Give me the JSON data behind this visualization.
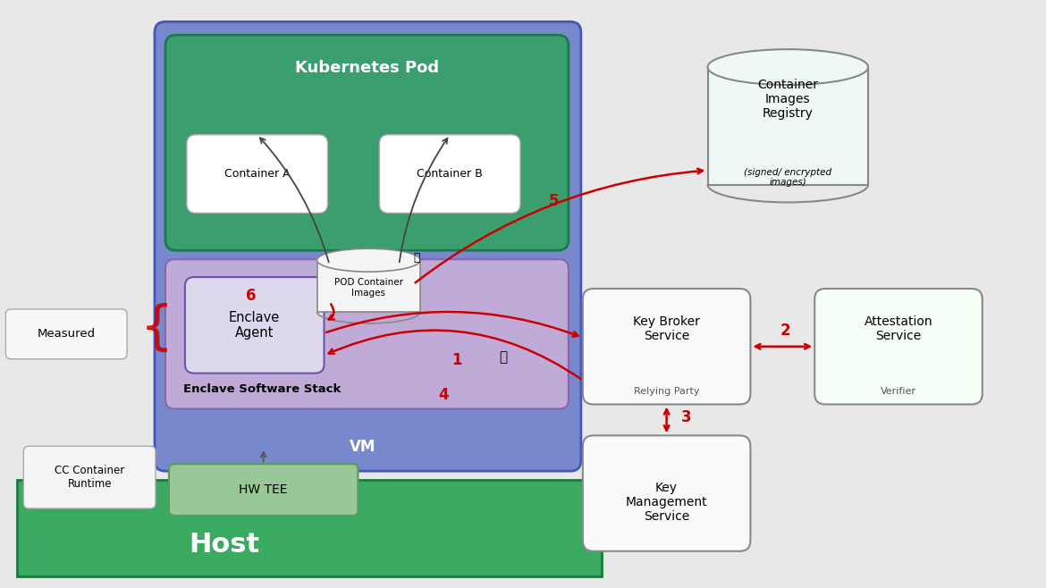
{
  "bg_color": "#e8e8e8",
  "colors": {
    "blue_vm": "#7788cc",
    "green_pod": "#3a9e6e",
    "purple_enclave": "#c0aad8",
    "green_host": "#3aaa60",
    "green_hwtee": "#98c898",
    "red": "#cc0000",
    "dark": "#444444"
  },
  "labels": {
    "kubernetes_pod": "Kubernetes Pod",
    "container_a": "Container A",
    "container_b": "Container B",
    "pod_container_images": "POD Container\nImages",
    "enclave_agent": "Enclave\nAgent",
    "enclave_software_stack": "Enclave Software Stack",
    "vm": "VM",
    "measured": "Measured",
    "cc_container_runtime": "CC Container\nRuntime",
    "hw_tee": "HW TEE",
    "host": "Host",
    "container_images_registry": "Container\nImages\nRegistry",
    "signed_encrypted": "(signed/ encrypted\nimages)",
    "key_broker_service": "Key Broker\nService",
    "relying_party": "Relying Party",
    "attestation_service": "Attestation\nService",
    "verifier": "Verifier",
    "key_management_service": "Key\nManagement\nService"
  }
}
